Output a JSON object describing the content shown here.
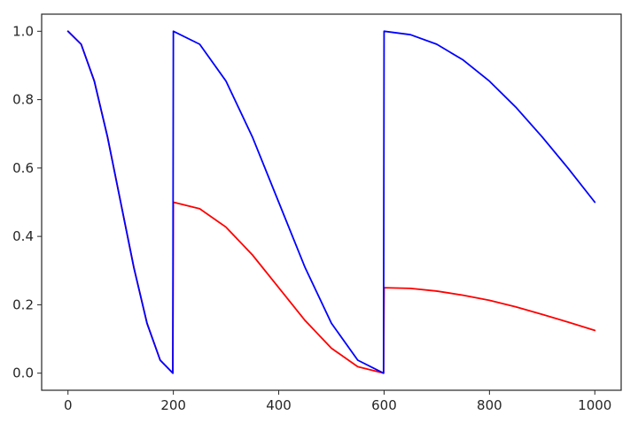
{
  "chart_data": {
    "type": "line",
    "title": "",
    "xlabel": "",
    "ylabel": "",
    "xlim": [
      -50,
      1050
    ],
    "ylim": [
      -0.05,
      1.05
    ],
    "x_ticks": [
      0,
      200,
      400,
      600,
      800,
      1000
    ],
    "y_ticks": [
      0.0,
      0.2,
      0.4,
      0.6,
      0.8,
      1.0
    ],
    "x_tick_labels": [
      "0",
      "200",
      "400",
      "600",
      "800",
      "1000"
    ],
    "y_tick_labels": [
      "0.0",
      "0.2",
      "0.4",
      "0.6",
      "0.8",
      "1.0"
    ],
    "grid": false,
    "series": [
      {
        "color": "#ff0000",
        "x": [
          0,
          25,
          50,
          75,
          100,
          125,
          150,
          175,
          199,
          200,
          250,
          300,
          350,
          400,
          450,
          500,
          550,
          599,
          600,
          650,
          700,
          750,
          800,
          850,
          900,
          950,
          1000
        ],
        "y": [
          1.0,
          0.962,
          0.854,
          0.691,
          0.5,
          0.309,
          0.146,
          0.038,
          0.0,
          0.5,
          0.481,
          0.427,
          0.346,
          0.25,
          0.154,
          0.073,
          0.019,
          0.0,
          0.25,
          0.248,
          0.24,
          0.228,
          0.213,
          0.194,
          0.172,
          0.149,
          0.125
        ]
      },
      {
        "color": "#0000ff",
        "x": [
          0,
          25,
          50,
          75,
          100,
          125,
          150,
          175,
          199,
          200,
          250,
          300,
          350,
          400,
          450,
          500,
          550,
          599,
          600,
          650,
          700,
          750,
          800,
          850,
          900,
          950,
          1000
        ],
        "y": [
          1.0,
          0.962,
          0.854,
          0.691,
          0.5,
          0.309,
          0.146,
          0.038,
          0.0,
          1.0,
          0.962,
          0.854,
          0.691,
          0.5,
          0.309,
          0.146,
          0.038,
          0.0,
          1.0,
          0.99,
          0.962,
          0.916,
          0.854,
          0.778,
          0.691,
          0.598,
          0.5
        ]
      }
    ]
  }
}
